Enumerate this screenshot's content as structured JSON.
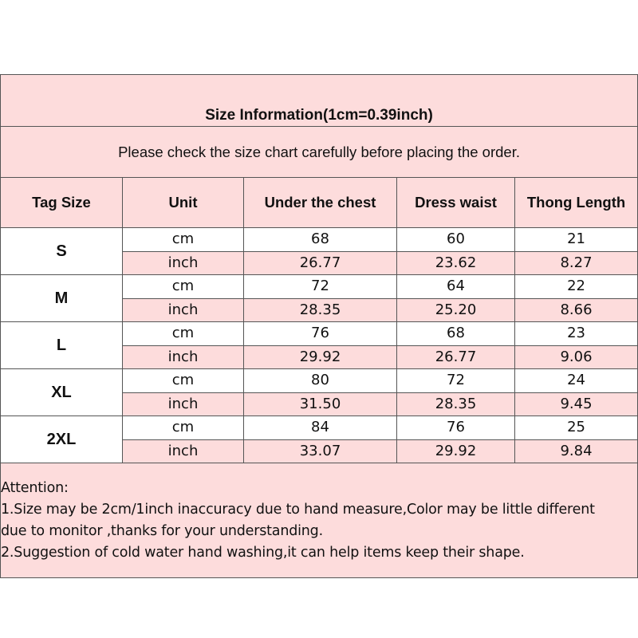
{
  "title": "Size Information(1cm=0.39inch)",
  "subtitle": "Please check the size chart carefully before placing the order.",
  "headers": [
    "Tag Size",
    "Unit",
    "Under the chest",
    "Dress waist",
    "Thong Length"
  ],
  "rows": [
    {
      "size": "S",
      "cm": {
        "unit": "cm",
        "values": [
          "68",
          "60",
          "21"
        ]
      },
      "inch": {
        "unit": "inch",
        "values": [
          "26.77",
          "23.62",
          "8.27"
        ]
      }
    },
    {
      "size": "M",
      "cm": {
        "unit": "cm",
        "values": [
          "72",
          "64",
          "22"
        ]
      },
      "inch": {
        "unit": "inch",
        "values": [
          "28.35",
          "25.20",
          "8.66"
        ]
      }
    },
    {
      "size": "L",
      "cm": {
        "unit": "cm",
        "values": [
          "76",
          "68",
          "23"
        ]
      },
      "inch": {
        "unit": "inch",
        "values": [
          "29.92",
          "26.77",
          "9.06"
        ]
      }
    },
    {
      "size": "XL",
      "cm": {
        "unit": "cm",
        "values": [
          "80",
          "72",
          "24"
        ]
      },
      "inch": {
        "unit": "inch",
        "values": [
          "31.50",
          "28.35",
          "9.45"
        ]
      }
    },
    {
      "size": "2XL",
      "cm": {
        "unit": "cm",
        "values": [
          "84",
          "76",
          "25"
        ]
      },
      "inch": {
        "unit": "inch",
        "values": [
          "33.07",
          "29.92",
          "9.84"
        ]
      }
    }
  ],
  "attention": {
    "heading": "Attention:",
    "lines": [
      "1.Size may be 2cm/1inch inaccuracy due to hand measure,Color may be little different",
      "due to monitor ,thanks for your understanding.",
      "2.Suggestion of cold water hand washing,it can help items keep their shape."
    ]
  },
  "colors": {
    "header_bg": "#fddcdc",
    "border": "#555555"
  }
}
